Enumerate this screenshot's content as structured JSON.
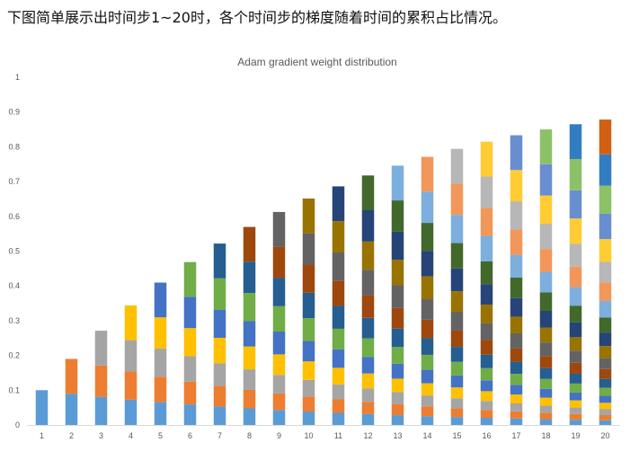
{
  "caption": "下图简单展示出时间步1~20时，各个时间步的梯度随着时间的累积占比情况。",
  "chart_data": {
    "type": "bar",
    "stacked": true,
    "title": "Adam gradient weight distribution",
    "xlabel": "",
    "ylabel": "",
    "ylim": [
      0,
      1
    ],
    "yticks": [
      "0",
      "0.1",
      "0.2",
      "0.3",
      "0.4",
      "0.5",
      "0.6",
      "0.7",
      "0.8",
      "0.9",
      "1"
    ],
    "categories": [
      "1",
      "2",
      "3",
      "4",
      "5",
      "6",
      "7",
      "8",
      "9",
      "10",
      "11",
      "12",
      "13",
      "14",
      "15",
      "16",
      "17",
      "18",
      "19",
      "20"
    ],
    "stack_totals": [
      0.1,
      0.19,
      0.271,
      0.344,
      0.41,
      0.469,
      0.522,
      0.57,
      0.613,
      0.651,
      0.686,
      0.718,
      0.746,
      0.771,
      0.794,
      0.815,
      0.833,
      0.85,
      0.865,
      0.878
    ],
    "series_colors": [
      "#5b9bd5",
      "#ed7d31",
      "#a5a5a5",
      "#ffc000",
      "#4472c4",
      "#70ad47",
      "#255e91",
      "#9e480e",
      "#636363",
      "#997300",
      "#264478",
      "#43682b",
      "#7cafdd",
      "#f1975a",
      "#b7b7b7",
      "#ffcd33",
      "#698ed0",
      "#8cc168",
      "#327dc2",
      "#d26012"
    ],
    "legend": "none",
    "grid": false
  }
}
